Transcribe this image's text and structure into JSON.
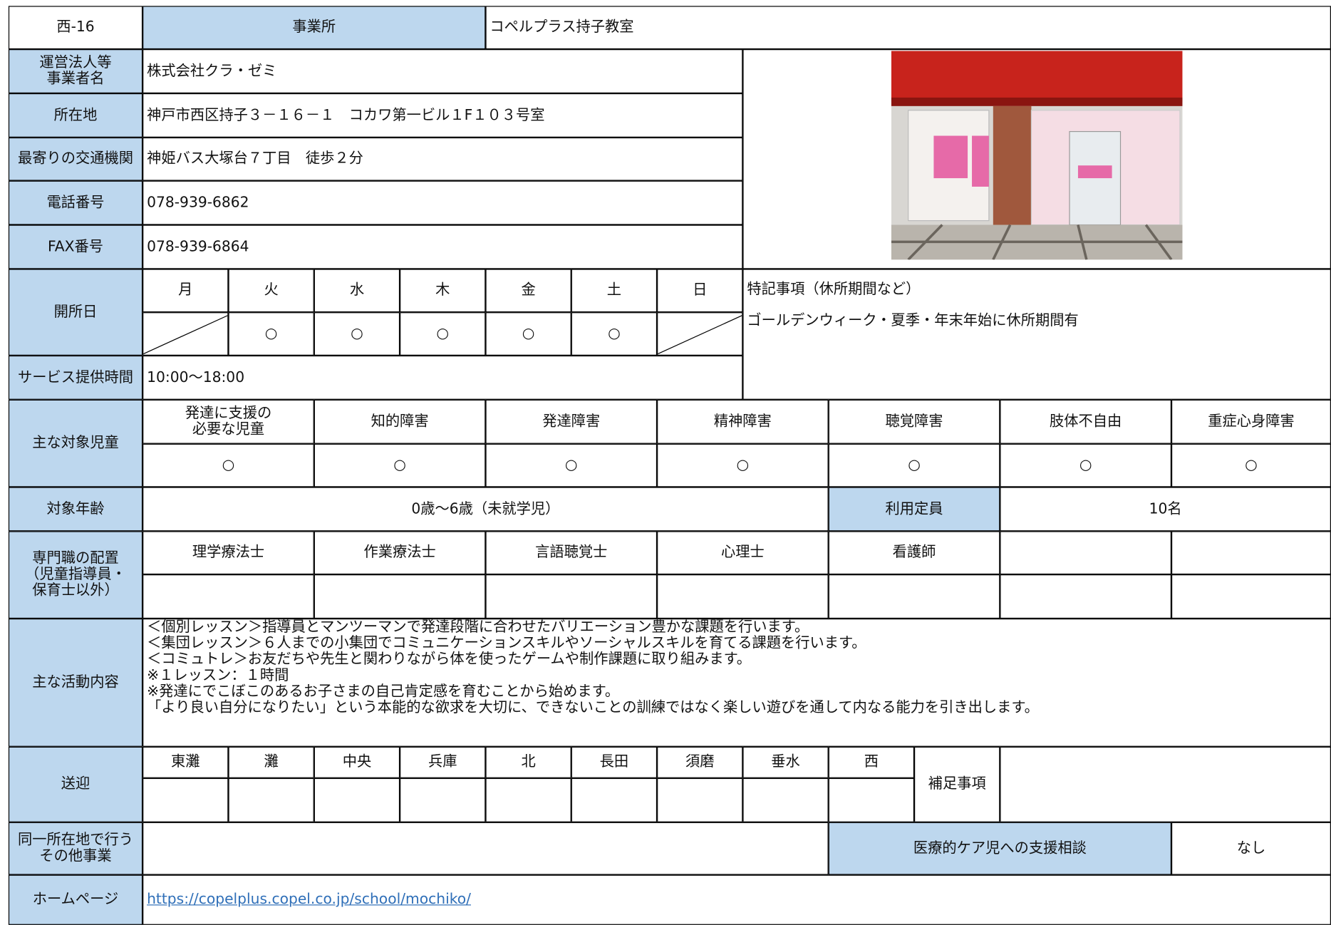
{
  "header": {
    "id": "西-16",
    "label": "事業所",
    "name": "コペルプラス持子教室"
  },
  "fields": [
    {
      "label": "運営法人等\n事業者名",
      "value": "株式会社クラ・ゼミ"
    },
    {
      "label": "所在地",
      "value": "神戸市西区持子３－１６－１　コカワ第一ビル１F１０３号室"
    },
    {
      "label": "最寄りの交通機関",
      "value": "神姫バス大塚台７丁目　徒歩２分"
    },
    {
      "label": "電話番号",
      "value": "078-939-6862"
    },
    {
      "label": "FAX番号",
      "value": "078-939-6864"
    }
  ],
  "opening": {
    "label": "開所日",
    "days": [
      "月",
      "火",
      "水",
      "木",
      "金",
      "土",
      "日"
    ],
    "marks": [
      null,
      "○",
      "○",
      "○",
      "○",
      "○",
      null
    ],
    "notes_title": "特記事項（休所期間など）",
    "notes": "ゴールデンウィーク・夏季・年末年始に休所期間有"
  },
  "hours": {
    "label": "サービス提供時間",
    "value": "10:00～18:00"
  },
  "targets": {
    "label": "主な対象児童",
    "categories": [
      "発達に支援の\n必要な児童",
      "知的障害",
      "発達障害",
      "精神障害",
      "聴覚障害",
      "肢体不自由",
      "重症心身障害"
    ],
    "marks": [
      "○",
      "○",
      "○",
      "○",
      "○",
      "○",
      "○"
    ]
  },
  "age": {
    "label": "対象年齢",
    "value": "0歳～6歳（未就学児）",
    "capacity_label": "利用定員",
    "capacity": "10名"
  },
  "staff": {
    "label": "専門職の配置\n（児童指導員・\n保育士以外）",
    "roles": [
      "理学療法士",
      "作業療法士",
      "言語聴覚士",
      "心理士",
      "看護師"
    ]
  },
  "activities": {
    "label": "主な活動内容",
    "lines": [
      "＜個別レッスン＞指導員とマンツーマンで発達段階に合わせたバリエーション豊かな課題を行います。",
      "＜集団レッスン＞６人までの小集団でコミュニケーションスキルやソーシャルスキルを育てる課題を行います。",
      "＜コミュトレ＞お友だちや先生と関わりながら体を使ったゲームや制作課題に取り組みます。",
      "※１レッスン：１時間",
      "※発達にでこぼこのあるお子さまの自己肯定感を育むことから始めます。",
      "「より良い自分になりたい」という本能的な欲求を大切に、できないことの訓練ではなく楽しい遊びを通して内なる能力を引き出します。"
    ]
  },
  "transport": {
    "label": "送迎",
    "areas": [
      "東灘",
      "灘",
      "中央",
      "兵庫",
      "北",
      "長田",
      "須磨",
      "垂水",
      "西"
    ],
    "notes_label": "補足事項"
  },
  "other": {
    "label": "同一所在地で行う\nその他事業",
    "medical_label": "医療的ケア児への支援相談",
    "medical_value": "なし"
  },
  "homepage": {
    "label": "ホームページ",
    "url": "https://copelplus.copel.co.jp/school/mochiko/"
  }
}
